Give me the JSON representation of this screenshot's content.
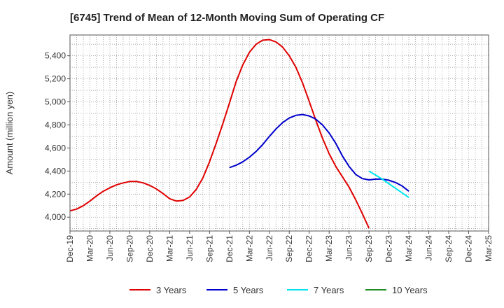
{
  "chart_data": {
    "type": "line",
    "title": "[6745]  Trend of Mean of 12-Month Moving Sum of Operating CF",
    "xlabel": "",
    "ylabel": "Amount (million yen)",
    "ylim": [
      3880,
      5580
    ],
    "yticks": [
      4000,
      4200,
      4400,
      4600,
      4800,
      5000,
      5200,
      5400
    ],
    "ytick_labels": [
      "4,000",
      "4,200",
      "4,400",
      "4,600",
      "4,800",
      "5,000",
      "5,200",
      "5,400"
    ],
    "x_categories": [
      "Dec-19",
      "Mar-20",
      "Jun-20",
      "Sep-20",
      "Dec-20",
      "Mar-21",
      "Jun-21",
      "Sep-21",
      "Dec-21",
      "Mar-22",
      "Jun-22",
      "Sep-22",
      "Dec-22",
      "Mar-23",
      "Jun-23",
      "Sep-23",
      "Dec-23",
      "Mar-24",
      "Jun-24",
      "Sep-24",
      "Dec-24",
      "Mar-25"
    ],
    "x_start": "Dec-19",
    "x_step_months": 3,
    "grid": true,
    "legend_position": "bottom",
    "series": [
      {
        "name": "3 Years",
        "color": "#e00000",
        "points": [
          [
            0,
            4055
          ],
          [
            1,
            4070
          ],
          [
            2,
            4100
          ],
          [
            3,
            4140
          ],
          [
            4,
            4185
          ],
          [
            5,
            4225
          ],
          [
            6,
            4255
          ],
          [
            7,
            4280
          ],
          [
            8,
            4297
          ],
          [
            9,
            4309
          ],
          [
            10,
            4310
          ],
          [
            11,
            4298
          ],
          [
            12,
            4275
          ],
          [
            13,
            4245
          ],
          [
            14,
            4205
          ],
          [
            15,
            4160
          ],
          [
            16,
            4140
          ],
          [
            17,
            4145
          ],
          [
            18,
            4175
          ],
          [
            19,
            4240
          ],
          [
            20,
            4340
          ],
          [
            21,
            4480
          ],
          [
            22,
            4640
          ],
          [
            23,
            4810
          ],
          [
            24,
            4990
          ],
          [
            25,
            5175
          ],
          [
            26,
            5320
          ],
          [
            27,
            5430
          ],
          [
            28,
            5500
          ],
          [
            29,
            5535
          ],
          [
            30,
            5540
          ],
          [
            31,
            5520
          ],
          [
            32,
            5475
          ],
          [
            33,
            5400
          ],
          [
            34,
            5300
          ],
          [
            35,
            5165
          ],
          [
            36,
            5005
          ],
          [
            37,
            4840
          ],
          [
            38,
            4685
          ],
          [
            39,
            4550
          ],
          [
            40,
            4440
          ],
          [
            41,
            4350
          ],
          [
            42,
            4260
          ],
          [
            43,
            4150
          ],
          [
            44,
            4030
          ],
          [
            45,
            3905
          ]
        ]
      },
      {
        "name": "5 Years",
        "color": "#0000cc",
        "points": [
          [
            24,
            4430
          ],
          [
            25,
            4450
          ],
          [
            26,
            4480
          ],
          [
            27,
            4520
          ],
          [
            28,
            4570
          ],
          [
            29,
            4630
          ],
          [
            30,
            4700
          ],
          [
            31,
            4765
          ],
          [
            32,
            4820
          ],
          [
            33,
            4860
          ],
          [
            34,
            4883
          ],
          [
            35,
            4890
          ],
          [
            36,
            4878
          ],
          [
            37,
            4850
          ],
          [
            38,
            4800
          ],
          [
            39,
            4730
          ],
          [
            40,
            4640
          ],
          [
            41,
            4530
          ],
          [
            42,
            4440
          ],
          [
            43,
            4370
          ],
          [
            44,
            4335
          ],
          [
            45,
            4323
          ],
          [
            46,
            4330
          ],
          [
            47,
            4330
          ],
          [
            48,
            4320
          ],
          [
            49,
            4300
          ],
          [
            50,
            4270
          ],
          [
            51,
            4225
          ]
        ]
      },
      {
        "name": "7 Years",
        "color": "#00e5ee",
        "points": [
          [
            45,
            4400
          ],
          [
            46,
            4365
          ],
          [
            47,
            4330
          ],
          [
            48,
            4290
          ],
          [
            49,
            4250
          ],
          [
            50,
            4210
          ],
          [
            51,
            4170
          ]
        ]
      },
      {
        "name": "10 Years",
        "color": "#228b22",
        "points": []
      }
    ]
  }
}
